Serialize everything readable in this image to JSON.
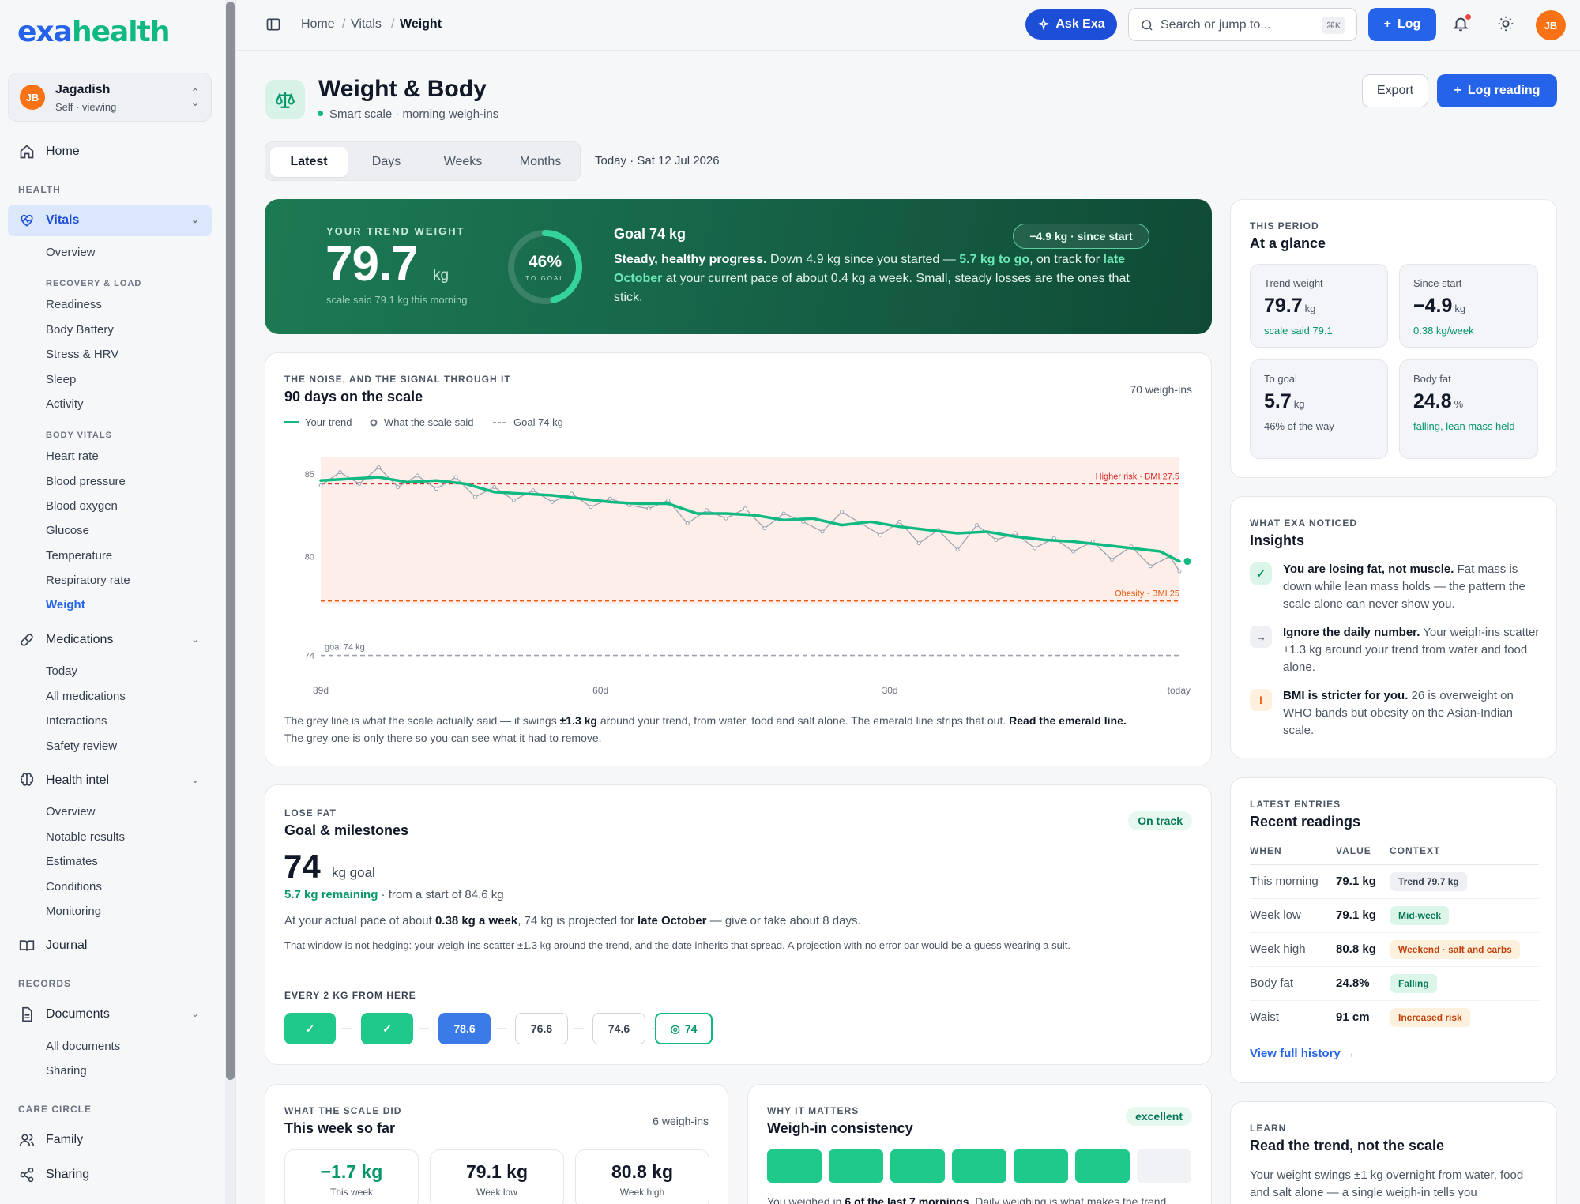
{
  "brand": {
    "part1": "exa",
    "part2": "health"
  },
  "user": {
    "initials": "JB",
    "name": "Jagadish",
    "subtitle": "Self · viewing"
  },
  "nav": {
    "home": "Home",
    "health_section": "HEALTH",
    "vitals": "Vitals",
    "vitals_items": {
      "overview": "Overview",
      "recovery_section": "RECOVERY & LOAD",
      "readiness": "Readiness",
      "body_battery": "Body Battery",
      "stress": "Stress & HRV",
      "sleep": "Sleep",
      "activity": "Activity",
      "body_vitals_section": "BODY VITALS",
      "heart_rate": "Heart rate",
      "blood_pressure": "Blood pressure",
      "blood_oxygen": "Blood oxygen",
      "glucose": "Glucose",
      "temperature": "Temperature",
      "respiratory": "Respiratory rate",
      "weight": "Weight"
    },
    "medications": "Medications",
    "med_items": {
      "today": "Today",
      "all": "All medications",
      "interactions": "Interactions",
      "safety": "Safety review"
    },
    "health_intel": "Health intel",
    "intel_items": {
      "overview": "Overview",
      "notable": "Notable results",
      "estimates": "Estimates",
      "conditions": "Conditions",
      "monitoring": "Monitoring"
    },
    "journal": "Journal",
    "records_section": "RECORDS",
    "documents": "Documents",
    "doc_items": {
      "all": "All documents",
      "sharing": "Sharing"
    },
    "care_section": "CARE CIRCLE",
    "family": "Family",
    "sharing": "Sharing"
  },
  "topbar": {
    "breadcrumbs": [
      "Home",
      "Vitals",
      "Weight"
    ],
    "ask": "Ask Exa",
    "search_placeholder": "Search or jump to...",
    "search_kbd": "⌘K",
    "log": "Log"
  },
  "page": {
    "title": "Weight & Body",
    "subtitle": "Smart scale · morning weigh-ins",
    "export": "Export",
    "log_reading": "Log reading",
    "tabs": [
      "Latest",
      "Days",
      "Weeks",
      "Months"
    ],
    "date": "Today · Sat 12 Jul 2026"
  },
  "hero": {
    "label": "YOUR TREND WEIGHT",
    "value": "79.7",
    "unit": "kg",
    "said": "scale said 79.1 kg this morning",
    "ring_pct": "46%",
    "ring_fraction": 0.46,
    "ring_label": "TO GOAL",
    "goal_title": "Goal 74 kg",
    "since_pill": "−4.9 kg · since start",
    "text_lead": "Steady, healthy progress.",
    "text_a": " Down 4.9 kg since you started — ",
    "text_hi1": "5.7 kg to go",
    "text_b": ", on track for ",
    "text_hi2": "late October",
    "text_c": " at your current pace of about 0.4 kg a week. Small, steady losses are the ones that stick."
  },
  "noise_card": {
    "eyebrow": "THE NOISE, AND THE SIGNAL THROUGH IT",
    "title": "90 days on the scale",
    "count": "70 weigh-ins",
    "legend": {
      "trend": "Your trend",
      "scale": "What the scale said",
      "goal": "Goal 74 kg"
    },
    "note_a": "The grey line is what the scale actually said — it swings ",
    "note_b": "±1.3 kg",
    "note_c": " around your trend, from water, food and salt alone. The emerald line strips that out. ",
    "note_d": "Read the emerald line.",
    "note_e": "The grey one is only there so you can see what it had to remove."
  },
  "chart_data": {
    "type": "line",
    "x_ticks": [
      "89d",
      "60d",
      "30d",
      "today"
    ],
    "y_ticks": [
      85,
      80,
      74
    ],
    "ylim": [
      73.5,
      86
    ],
    "reference_lines": [
      {
        "label": "Higher risk · BMI 27.5",
        "value": 84.4
      },
      {
        "label": "Obesity · BMI 25",
        "value": 77.3
      },
      {
        "label": "goal 74 kg",
        "value": 74
      }
    ],
    "series": [
      {
        "name": "Your trend",
        "color": "#10b981",
        "x": [
          -89,
          -86,
          -83,
          -80,
          -77,
          -74,
          -71,
          -68,
          -65,
          -62,
          -59,
          -56,
          -53,
          -50,
          -47,
          -44,
          -41,
          -38,
          -35,
          -32,
          -29,
          -26,
          -23,
          -20,
          -17,
          -14,
          -11,
          -8,
          -5,
          -2,
          0
        ],
        "values": [
          84.6,
          84.7,
          84.8,
          84.5,
          84.6,
          84.4,
          83.9,
          83.8,
          83.7,
          83.5,
          83.3,
          83.2,
          83.2,
          82.6,
          82.6,
          82.5,
          82.2,
          82.3,
          81.9,
          82.1,
          81.8,
          81.6,
          81.4,
          81.5,
          81.2,
          81.0,
          80.9,
          80.7,
          80.5,
          80.3,
          79.7
        ]
      },
      {
        "name": "What the scale said",
        "color": "#9ca3af",
        "x": [
          -89,
          -87,
          -85,
          -83,
          -81,
          -79,
          -77,
          -75,
          -73,
          -71,
          -69,
          -67,
          -65,
          -63,
          -61,
          -59,
          -57,
          -55,
          -53,
          -51,
          -49,
          -47,
          -45,
          -43,
          -41,
          -39,
          -37,
          -35,
          -33,
          -31,
          -29,
          -27,
          -25,
          -23,
          -21,
          -19,
          -17,
          -15,
          -13,
          -11,
          -9,
          -7,
          -5,
          -3,
          -1,
          0
        ],
        "values": [
          84.3,
          85.1,
          84.4,
          85.4,
          84.2,
          84.9,
          84.1,
          84.8,
          83.6,
          84.2,
          83.4,
          84.0,
          83.3,
          83.8,
          83.0,
          83.5,
          83.1,
          82.9,
          83.4,
          82.0,
          82.8,
          82.3,
          82.9,
          81.7,
          82.6,
          82.1,
          81.5,
          82.7,
          82.0,
          81.3,
          82.1,
          80.8,
          81.6,
          80.4,
          81.9,
          81.0,
          81.4,
          80.5,
          81.1,
          80.3,
          80.9,
          79.8,
          80.6,
          79.4,
          80.0,
          79.1
        ]
      }
    ]
  },
  "glance": {
    "eyebrow": "THIS PERIOD",
    "title": "At a glance",
    "stats": [
      {
        "label": "Trend weight",
        "value": "79.7",
        "unit": "kg",
        "sub": "scale said 79.1"
      },
      {
        "label": "Since start",
        "value": "−4.9",
        "unit": "kg",
        "sub": "0.38 kg/week"
      },
      {
        "label": "To goal",
        "value": "5.7",
        "unit": "kg",
        "sub": "46% of the way"
      },
      {
        "label": "Body fat",
        "value": "24.8",
        "unit": "%",
        "sub": "falling, lean mass held"
      }
    ]
  },
  "insights": {
    "eyebrow": "WHAT EXA NOTICED",
    "title": "Insights",
    "items": [
      {
        "icon": "✓",
        "lead": "You are losing fat, not muscle.",
        "text": " Fat mass is down while lean mass holds — the pattern the scale alone can never show you."
      },
      {
        "icon": "→",
        "lead": "Ignore the daily number.",
        "text": " Your weigh-ins scatter ±1.3 kg around your trend from water and food alone."
      },
      {
        "icon": "!",
        "lead": "BMI is stricter for you.",
        "text": " 26 is overweight on WHO bands but obesity on the Asian-Indian scale."
      }
    ]
  },
  "goal_card": {
    "eyebrow": "LOSE FAT",
    "title": "Goal & milestones",
    "status": "On track",
    "goal_value": "74",
    "goal_unit": "kg goal",
    "remaining": "5.7 kg remaining",
    "from_start": " · from a start of 84.6 kg",
    "pace_a": "At your actual pace of about ",
    "pace_b": "0.38 kg a week",
    "pace_c": ", 74 kg is projected for ",
    "pace_d": "late October",
    "pace_e": " — give or take about 8 days.",
    "hedge": "That window is not hedging: your weigh-ins scatter ±1.3 kg around the trend, and the date inherits that spread. A projection with no error bar would be a guess wearing a suit.",
    "milestones_label": "EVERY 2 KG FROM HERE",
    "milestones": [
      "78.6",
      "76.6",
      "74.6",
      "74"
    ]
  },
  "recent": {
    "eyebrow": "LATEST ENTRIES",
    "title": "Recent readings",
    "headers": [
      "WHEN",
      "VALUE",
      "CONTEXT"
    ],
    "rows": [
      {
        "when": "This morning",
        "value": "79.1 kg",
        "tag": "Trend 79.7 kg"
      },
      {
        "when": "Week low",
        "value": "79.1 kg",
        "tag": "Mid-week"
      },
      {
        "when": "Week high",
        "value": "80.8 kg",
        "tag": "Weekend · salt and carbs"
      },
      {
        "when": "Body fat",
        "value": "24.8%",
        "tag": "Falling"
      },
      {
        "when": "Waist",
        "value": "91 cm",
        "tag": "Increased risk"
      }
    ],
    "link": "View full history →"
  },
  "week": {
    "eyebrow": "WHAT THE SCALE DID",
    "title": "This week so far",
    "count": "6 weigh-ins",
    "tiles": [
      {
        "value": "−1.7 kg",
        "label": "This week"
      },
      {
        "value": "79.1 kg",
        "label": "Week low"
      },
      {
        "value": "80.8 kg",
        "label": "Week high"
      }
    ]
  },
  "consistency": {
    "eyebrow": "WHY IT MATTERS",
    "title": "Weigh-in consistency",
    "status": "excellent",
    "days": [
      true,
      true,
      true,
      true,
      true,
      true,
      false
    ],
    "note_a": "You weighed in ",
    "note_b": "6 of the last 7 mornings",
    "note_c": ". Daily weighing is what makes the trend"
  },
  "learn": {
    "eyebrow": "LEARN",
    "title": "Read the trend, not the scale",
    "text": "Your weight swings ±1 kg overnight from water, food and salt alone — a single weigh-in tells you"
  },
  "colors": {
    "accent": "#2563eb",
    "emerald": "#10b981",
    "hero": "#17664a",
    "risk": "#dc2626",
    "obesity": "#ea580c"
  }
}
